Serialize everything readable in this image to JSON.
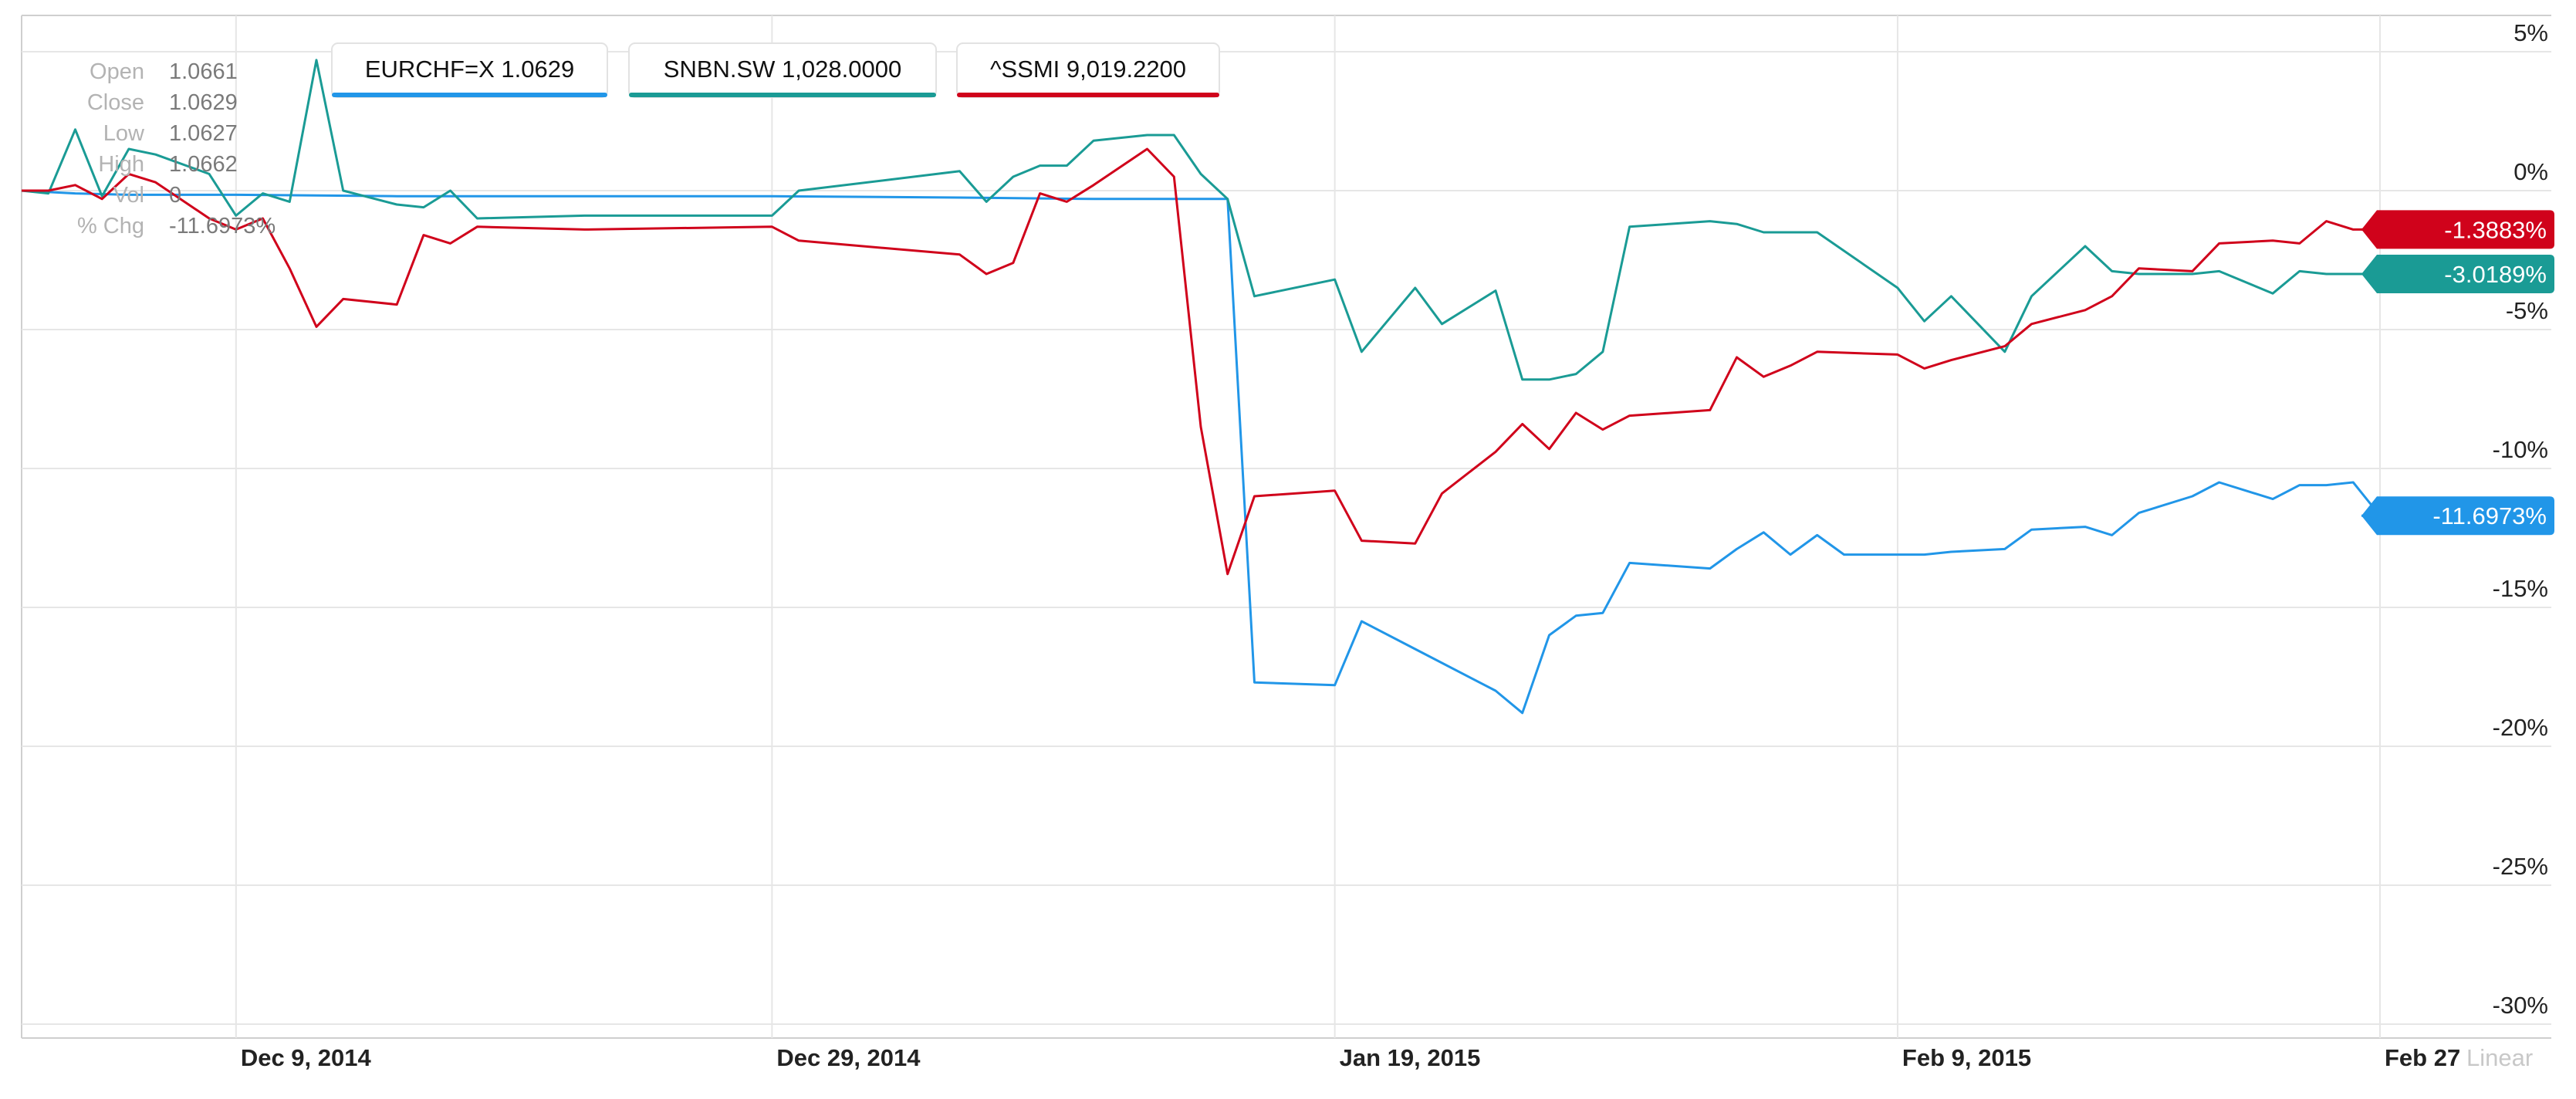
{
  "ohlc_panel": {
    "rows": [
      {
        "label": "Open",
        "value": "1.0661"
      },
      {
        "label": "Close",
        "value": "1.0629"
      },
      {
        "label": "Low",
        "value": "1.0627"
      },
      {
        "label": "High",
        "value": "1.0662"
      },
      {
        "label": "Vol",
        "value": "0"
      },
      {
        "label": "% Chg",
        "value": "-11.6973%"
      }
    ]
  },
  "legend": [
    {
      "text": "EURCHF=X 1.0629",
      "color": "#2196e8"
    },
    {
      "text": "SNBN.SW 1,028.0000",
      "color": "#1a9b95"
    },
    {
      "text": "^SSMI 9,019.2200",
      "color": "#d0021b"
    }
  ],
  "scale_mode": "Linear",
  "chart_data": {
    "type": "line",
    "ylim": [
      -30,
      5
    ],
    "y_unit": "%",
    "y_ticks": [
      5,
      0,
      -5,
      -10,
      -15,
      -20,
      -25,
      -30
    ],
    "y_tick_labels": [
      "5%",
      "0%",
      "-5%",
      "-10%",
      "-15%",
      "-20%",
      "-25%",
      "-30%"
    ],
    "x_ticks": [
      {
        "date": "2014-12-09",
        "label": "Dec 9, 2014"
      },
      {
        "date": "2014-12-29",
        "label": "Dec 29, 2014"
      },
      {
        "date": "2015-01-19",
        "label": "Jan 19, 2015"
      },
      {
        "date": "2015-02-09",
        "label": "Feb 9, 2015"
      },
      {
        "date": "2015-02-27",
        "label": "Feb 27"
      }
    ],
    "x_range": [
      "2014-12-01",
      "2015-02-27"
    ],
    "series": [
      {
        "name": "EURCHF=X",
        "color": "#2196e8",
        "last_label": "-11.6973%",
        "points": [
          [
            "2014-12-01",
            0
          ],
          [
            "2014-12-03",
            -0.1
          ],
          [
            "2014-12-05",
            -0.15
          ],
          [
            "2014-12-09",
            -0.15
          ],
          [
            "2014-12-15",
            -0.2
          ],
          [
            "2014-12-20",
            -0.2
          ],
          [
            "2014-12-29",
            -0.2
          ],
          [
            "2015-01-05",
            -0.25
          ],
          [
            "2015-01-10",
            -0.3
          ],
          [
            "2015-01-15",
            -0.3
          ],
          [
            "2015-01-16",
            -17.7
          ],
          [
            "2015-01-19",
            -17.8
          ],
          [
            "2015-01-20",
            -15.5
          ],
          [
            "2015-01-22",
            -16.5
          ],
          [
            "2015-01-25",
            -18.0
          ],
          [
            "2015-01-26",
            -18.8
          ],
          [
            "2015-01-27",
            -16.0
          ],
          [
            "2015-01-28",
            -15.3
          ],
          [
            "2015-01-29",
            -15.2
          ],
          [
            "2015-01-30",
            -13.4
          ],
          [
            "2015-02-02",
            -13.6
          ],
          [
            "2015-02-03",
            -12.9
          ],
          [
            "2015-02-04",
            -12.3
          ],
          [
            "2015-02-05",
            -13.1
          ],
          [
            "2015-02-06",
            -12.4
          ],
          [
            "2015-02-07",
            -13.1
          ],
          [
            "2015-02-09",
            -13.1
          ],
          [
            "2015-02-10",
            -13.1
          ],
          [
            "2015-02-11",
            -13.0
          ],
          [
            "2015-02-13",
            -12.9
          ],
          [
            "2015-02-14",
            -12.2
          ],
          [
            "2015-02-16",
            -12.1
          ],
          [
            "2015-02-17",
            -12.4
          ],
          [
            "2015-02-18",
            -11.6
          ],
          [
            "2015-02-20",
            -11.0
          ],
          [
            "2015-02-21",
            -10.5
          ],
          [
            "2015-02-23",
            -11.1
          ],
          [
            "2015-02-24",
            -10.6
          ],
          [
            "2015-02-25",
            -10.6
          ],
          [
            "2015-02-26",
            -10.5
          ],
          [
            "2015-02-27",
            -11.7
          ]
        ]
      },
      {
        "name": "SNBN.SW",
        "color": "#1a9b95",
        "last_label": "-3.0189%",
        "points": [
          [
            "2014-12-01",
            0
          ],
          [
            "2014-12-02",
            -0.1
          ],
          [
            "2014-12-03",
            2.2
          ],
          [
            "2014-12-04",
            -0.2
          ],
          [
            "2014-12-05",
            1.5
          ],
          [
            "2014-12-06",
            1.3
          ],
          [
            "2014-12-08",
            0.6
          ],
          [
            "2014-12-09",
            -0.9
          ],
          [
            "2014-12-10",
            -0.1
          ],
          [
            "2014-12-11",
            -0.4
          ],
          [
            "2014-12-12",
            4.7
          ],
          [
            "2014-12-13",
            0
          ],
          [
            "2014-12-15",
            -0.5
          ],
          [
            "2014-12-16",
            -0.6
          ],
          [
            "2014-12-17",
            0
          ],
          [
            "2014-12-18",
            -1.0
          ],
          [
            "2014-12-22",
            -0.9
          ],
          [
            "2014-12-29",
            -0.9
          ],
          [
            "2014-12-30",
            0
          ],
          [
            "2015-01-05",
            0.7
          ],
          [
            "2015-01-06",
            -0.4
          ],
          [
            "2015-01-07",
            0.5
          ],
          [
            "2015-01-08",
            0.9
          ],
          [
            "2015-01-09",
            0.9
          ],
          [
            "2015-01-10",
            1.8
          ],
          [
            "2015-01-12",
            2.0
          ],
          [
            "2015-01-13",
            2.0
          ],
          [
            "2015-01-14",
            0.6
          ],
          [
            "2015-01-15",
            -0.3
          ],
          [
            "2015-01-16",
            -3.8
          ],
          [
            "2015-01-19",
            -3.2
          ],
          [
            "2015-01-20",
            -5.8
          ],
          [
            "2015-01-22",
            -3.5
          ],
          [
            "2015-01-23",
            -4.8
          ],
          [
            "2015-01-25",
            -3.6
          ],
          [
            "2015-01-26",
            -6.8
          ],
          [
            "2015-01-27",
            -6.8
          ],
          [
            "2015-01-28",
            -6.6
          ],
          [
            "2015-01-29",
            -5.8
          ],
          [
            "2015-01-30",
            -1.3
          ],
          [
            "2015-02-02",
            -1.1
          ],
          [
            "2015-02-03",
            -1.2
          ],
          [
            "2015-02-04",
            -1.5
          ],
          [
            "2015-02-05",
            -1.5
          ],
          [
            "2015-02-06",
            -1.5
          ],
          [
            "2015-02-09",
            -3.5
          ],
          [
            "2015-02-10",
            -4.7
          ],
          [
            "2015-02-11",
            -3.8
          ],
          [
            "2015-02-13",
            -5.8
          ],
          [
            "2015-02-14",
            -3.8
          ],
          [
            "2015-02-16",
            -2.0
          ],
          [
            "2015-02-17",
            -2.9
          ],
          [
            "2015-02-18",
            -3.0
          ],
          [
            "2015-02-20",
            -3.0
          ],
          [
            "2015-02-21",
            -2.9
          ],
          [
            "2015-02-23",
            -3.7
          ],
          [
            "2015-02-24",
            -2.9
          ],
          [
            "2015-02-25",
            -3.0
          ],
          [
            "2015-02-26",
            -3.0
          ],
          [
            "2015-02-27",
            -3.0
          ]
        ]
      },
      {
        "name": "^SSMI",
        "color": "#d0021b",
        "last_label": "-1.3883%",
        "points": [
          [
            "2014-12-01",
            0
          ],
          [
            "2014-12-02",
            0
          ],
          [
            "2014-12-03",
            0.2
          ],
          [
            "2014-12-04",
            -0.3
          ],
          [
            "2014-12-05",
            0.6
          ],
          [
            "2014-12-06",
            0.3
          ],
          [
            "2014-12-08",
            -1.0
          ],
          [
            "2014-12-09",
            -1.4
          ],
          [
            "2014-12-10",
            -1.0
          ],
          [
            "2014-12-11",
            -2.8
          ],
          [
            "2014-12-12",
            -4.9
          ],
          [
            "2014-12-13",
            -3.9
          ],
          [
            "2014-12-15",
            -4.1
          ],
          [
            "2014-12-16",
            -1.6
          ],
          [
            "2014-12-17",
            -1.9
          ],
          [
            "2014-12-18",
            -1.3
          ],
          [
            "2014-12-22",
            -1.4
          ],
          [
            "2014-12-29",
            -1.3
          ],
          [
            "2014-12-30",
            -1.8
          ],
          [
            "2015-01-05",
            -2.3
          ],
          [
            "2015-01-06",
            -3.0
          ],
          [
            "2015-01-07",
            -2.6
          ],
          [
            "2015-01-08",
            -0.1
          ],
          [
            "2015-01-09",
            -0.4
          ],
          [
            "2015-01-10",
            0.2
          ],
          [
            "2015-01-12",
            1.5
          ],
          [
            "2015-01-13",
            0.5
          ],
          [
            "2015-01-14",
            -8.5
          ],
          [
            "2015-01-15",
            -13.8
          ],
          [
            "2015-01-16",
            -11.0
          ],
          [
            "2015-01-19",
            -10.8
          ],
          [
            "2015-01-20",
            -12.6
          ],
          [
            "2015-01-22",
            -12.7
          ],
          [
            "2015-01-23",
            -10.9
          ],
          [
            "2015-01-25",
            -9.4
          ],
          [
            "2015-01-26",
            -8.4
          ],
          [
            "2015-01-27",
            -9.3
          ],
          [
            "2015-01-28",
            -8.0
          ],
          [
            "2015-01-29",
            -8.6
          ],
          [
            "2015-01-30",
            -8.1
          ],
          [
            "2015-02-02",
            -7.9
          ],
          [
            "2015-02-03",
            -6.0
          ],
          [
            "2015-02-04",
            -6.7
          ],
          [
            "2015-02-05",
            -6.3
          ],
          [
            "2015-02-06",
            -5.8
          ],
          [
            "2015-02-09",
            -5.9
          ],
          [
            "2015-02-10",
            -6.4
          ],
          [
            "2015-02-11",
            -6.1
          ],
          [
            "2015-02-13",
            -5.6
          ],
          [
            "2015-02-14",
            -4.8
          ],
          [
            "2015-02-16",
            -4.3
          ],
          [
            "2015-02-17",
            -3.8
          ],
          [
            "2015-02-18",
            -2.8
          ],
          [
            "2015-02-20",
            -2.9
          ],
          [
            "2015-02-21",
            -1.9
          ],
          [
            "2015-02-23",
            -1.8
          ],
          [
            "2015-02-24",
            -1.9
          ],
          [
            "2015-02-25",
            -1.1
          ],
          [
            "2015-02-26",
            -1.4
          ],
          [
            "2015-02-27",
            -1.4
          ]
        ]
      }
    ]
  }
}
